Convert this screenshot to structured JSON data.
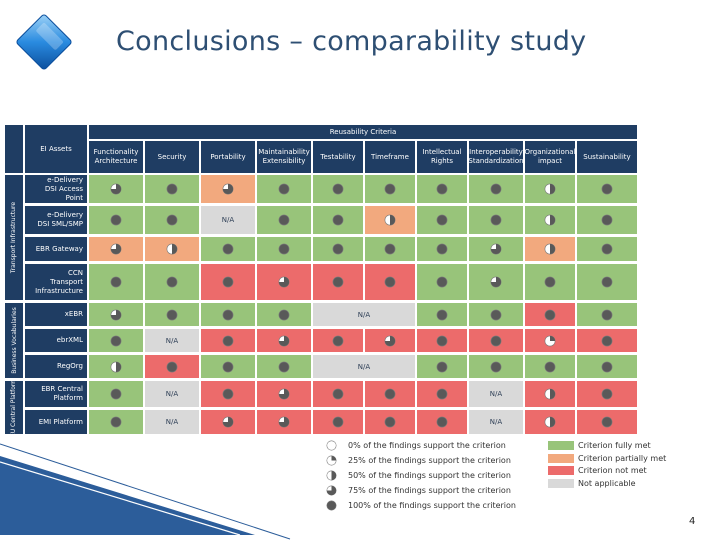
{
  "title": "Conclusions – comparability study",
  "slide_number": "4",
  "matrix": {
    "top_header": "Reusability Criteria",
    "assets_header": "EI Assets",
    "columns": [
      {
        "name": "Functionality",
        "sub": "Architecture"
      },
      {
        "name": "Security",
        "sub": ""
      },
      {
        "name": "Portability",
        "sub": ""
      },
      {
        "name": "Maintainability",
        "sub": "Extensibility"
      },
      {
        "name": "Testability",
        "sub": ""
      },
      {
        "name": "Timeframe",
        "sub": ""
      },
      {
        "name": "Intellectual",
        "sub": "Rights"
      },
      {
        "name": "Interoperability",
        "sub": "Standardization"
      },
      {
        "name": "Organizational",
        "sub": "impact"
      },
      {
        "name": "Sustainability",
        "sub": ""
      }
    ],
    "groups": [
      {
        "label": "Transport Infrastructure"
      },
      {
        "label": "Business Vocabularies"
      },
      {
        "label": "EU Central Platform"
      }
    ],
    "rows": [
      {
        "asset": [
          "e-Delivery",
          "DSI Access",
          "Point"
        ],
        "cells": [
          {
            "c": "g",
            "p": 75
          },
          {
            "c": "g",
            "p": 100
          },
          {
            "c": "o",
            "p": 75
          },
          {
            "c": "g",
            "p": 100
          },
          {
            "c": "g",
            "p": 100
          },
          {
            "c": "g",
            "p": 100
          },
          {
            "c": "g",
            "p": 100
          },
          {
            "c": "g",
            "p": 100
          },
          {
            "c": "g",
            "p": 50
          },
          {
            "c": "g",
            "p": 100
          }
        ]
      },
      {
        "asset": [
          "e-Delivery",
          "DSI SML/SMP"
        ],
        "cells": [
          {
            "c": "g",
            "p": 100
          },
          {
            "c": "g",
            "p": 100
          },
          {
            "c": "x",
            "na": "N/A"
          },
          {
            "c": "g",
            "p": 100
          },
          {
            "c": "g",
            "p": 100
          },
          {
            "c": "o",
            "p": 50
          },
          {
            "c": "g",
            "p": 100
          },
          {
            "c": "g",
            "p": 100
          },
          {
            "c": "g",
            "p": 50
          },
          {
            "c": "g",
            "p": 100
          }
        ]
      },
      {
        "asset": [
          "EBR Gateway"
        ],
        "cells": [
          {
            "c": "o",
            "p": 75
          },
          {
            "c": "o",
            "p": 50
          },
          {
            "c": "g",
            "p": 100
          },
          {
            "c": "g",
            "p": 100
          },
          {
            "c": "g",
            "p": 100
          },
          {
            "c": "g",
            "p": 100
          },
          {
            "c": "g",
            "p": 100
          },
          {
            "c": "g",
            "p": 75
          },
          {
            "c": "o",
            "p": 50
          },
          {
            "c": "g",
            "p": 100
          }
        ]
      },
      {
        "asset": [
          "CCN",
          "Transport",
          "Infrastructure"
        ],
        "cells": [
          {
            "c": "g",
            "p": 100
          },
          {
            "c": "g",
            "p": 100
          },
          {
            "c": "r",
            "p": 100
          },
          {
            "c": "r",
            "p": 75
          },
          {
            "c": "r",
            "p": 100
          },
          {
            "c": "r",
            "p": 100
          },
          {
            "c": "g",
            "p": 100
          },
          {
            "c": "g",
            "p": 75
          },
          {
            "c": "g",
            "p": 100
          },
          {
            "c": "g",
            "p": 100
          }
        ]
      },
      {
        "asset": [
          "xEBR"
        ],
        "cells": [
          {
            "c": "g",
            "p": 75
          },
          {
            "c": "g",
            "p": 100
          },
          {
            "c": "g",
            "p": 100
          },
          {
            "c": "g",
            "p": 100
          },
          {
            "c": "x",
            "na": "N/A"
          },
          {
            "c": "x",
            "na": ""
          },
          {
            "c": "g",
            "p": 100
          },
          {
            "c": "g",
            "p": 100
          },
          {
            "c": "r",
            "p": 100
          },
          {
            "c": "g",
            "p": 100
          }
        ]
      },
      {
        "asset": [
          "ebrXML"
        ],
        "cells": [
          {
            "c": "g",
            "p": 100
          },
          {
            "c": "x",
            "na": "N/A"
          },
          {
            "c": "r",
            "p": 100
          },
          {
            "c": "r",
            "p": 75
          },
          {
            "c": "r",
            "p": 100
          },
          {
            "c": "r",
            "p": 75
          },
          {
            "c": "r",
            "p": 100
          },
          {
            "c": "r",
            "p": 100
          },
          {
            "c": "r",
            "p": 25
          },
          {
            "c": "r",
            "p": 100
          }
        ]
      },
      {
        "asset": [
          "RegOrg"
        ],
        "cells": [
          {
            "c": "g",
            "p": 50
          },
          {
            "c": "r",
            "p": 100
          },
          {
            "c": "g",
            "p": 100
          },
          {
            "c": "g",
            "p": 100
          },
          {
            "c": "x",
            "na": "N/A"
          },
          {
            "c": "x",
            "na": ""
          },
          {
            "c": "g",
            "p": 100
          },
          {
            "c": "g",
            "p": 100
          },
          {
            "c": "g",
            "p": 100
          },
          {
            "c": "g",
            "p": 100
          }
        ]
      },
      {
        "asset": [
          "EBR Central",
          "Platform"
        ],
        "cells": [
          {
            "c": "g",
            "p": 100
          },
          {
            "c": "x",
            "na": "N/A"
          },
          {
            "c": "r",
            "p": 100
          },
          {
            "c": "r",
            "p": 75
          },
          {
            "c": "r",
            "p": 100
          },
          {
            "c": "r",
            "p": 100
          },
          {
            "c": "r",
            "p": 100
          },
          {
            "c": "x",
            "na": "N/A"
          },
          {
            "c": "r",
            "p": 50
          },
          {
            "c": "r",
            "p": 100
          }
        ]
      },
      {
        "asset": [
          "EMI Platform"
        ],
        "cells": [
          {
            "c": "g",
            "p": 100
          },
          {
            "c": "x",
            "na": "N/A"
          },
          {
            "c": "r",
            "p": 75
          },
          {
            "c": "r",
            "p": 75
          },
          {
            "c": "r",
            "p": 100
          },
          {
            "c": "r",
            "p": 100
          },
          {
            "c": "r",
            "p": 100
          },
          {
            "c": "x",
            "na": "N/A"
          },
          {
            "c": "r",
            "p": 50
          },
          {
            "c": "r",
            "p": 100
          }
        ]
      }
    ]
  },
  "legend": {
    "pies": [
      {
        "p": 0,
        "label": "0% of the findings support the criterion"
      },
      {
        "p": 25,
        "label": "25% of the findings support the criterion"
      },
      {
        "p": 50,
        "label": "50% of the findings support the criterion"
      },
      {
        "p": 75,
        "label": "75% of the findings support the criterion"
      },
      {
        "p": 100,
        "label": "100% of the findings support the criterion"
      }
    ],
    "colors": [
      {
        "c": "g",
        "label": "Criterion fully met"
      },
      {
        "c": "o",
        "label": "Criterion partially met"
      },
      {
        "c": "r",
        "label": "Criterion not met"
      },
      {
        "c": "x",
        "label": "Not applicable"
      }
    ]
  },
  "palette": {
    "green": "#98c47a",
    "orange": "#f2a97e",
    "red": "#ec6b6b",
    "grey": "#d9d9d9",
    "header": "#1f3d63",
    "pie": "#595959"
  }
}
